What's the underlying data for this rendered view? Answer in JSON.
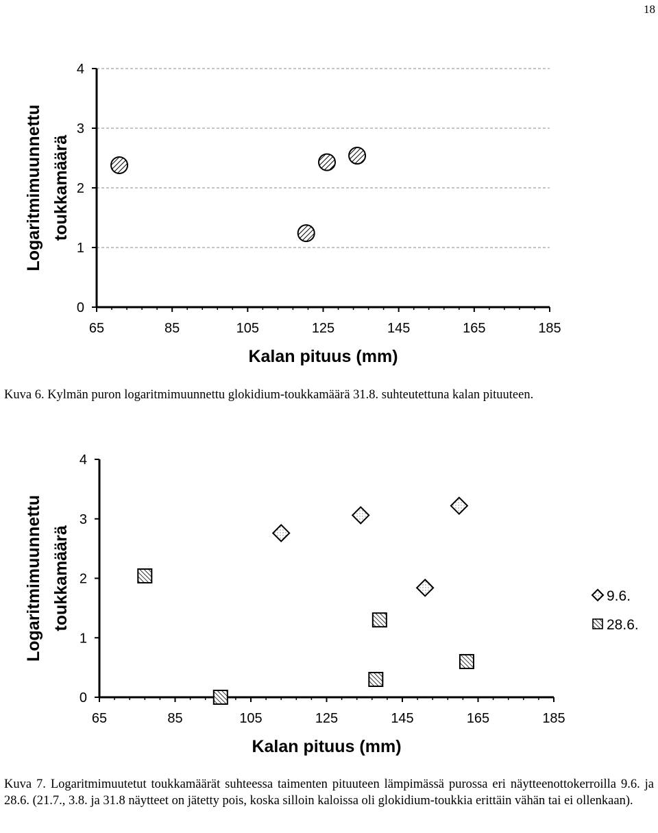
{
  "page": {
    "number": "18"
  },
  "figures": [
    {
      "caption": "Kuva 6. Kylmän puron logaritmimuunnettu glokidium-toukkamäärä 31.8. suhteutettuna kalan pituuteen."
    },
    {
      "caption": "Kuva 7. Logaritmimuutetut toukkamäärät suhteessa taimenten pituuteen lämpimässä purossa eri näytteenottokerroilla 9.6. ja 28.6. (21.7., 3.8. ja 31.8 näytteet on jätetty pois, koska silloin kaloissa oli glokidium-toukkia erittäin vähän tai ei ollenkaan)."
    }
  ],
  "chart_data": [
    {
      "type": "scatter",
      "title": "",
      "xlabel": "Kalan pituus (mm)",
      "ylabel": "Logaritmimuunnettu toukkamäärä",
      "ylabel_lines": [
        "Logaritmimuunnettu",
        "toukkamäärä"
      ],
      "xlim": [
        65,
        185
      ],
      "ylim": [
        0,
        4
      ],
      "x_ticks": [
        65,
        85,
        105,
        125,
        145,
        165,
        185
      ],
      "y_ticks": [
        0,
        1,
        2,
        3,
        4
      ],
      "grid": "horizontal-dashed",
      "legend": "none",
      "series": [
        {
          "marker": "circle-hatched",
          "points": [
            {
              "x": 71,
              "y": 2.38
            },
            {
              "x": 120.5,
              "y": 1.24
            },
            {
              "x": 126,
              "y": 2.43
            },
            {
              "x": 134,
              "y": 2.54
            }
          ]
        }
      ]
    },
    {
      "type": "scatter",
      "title": "",
      "xlabel": "Kalan pituus (mm)",
      "ylabel": "Logaritmimuunnettu toukkamäärä",
      "ylabel_lines": [
        "Logaritmimuunnettu",
        "toukkamäärä"
      ],
      "xlim": [
        65,
        185
      ],
      "ylim": [
        0,
        4
      ],
      "x_ticks": [
        65,
        85,
        105,
        125,
        145,
        165,
        185
      ],
      "y_ticks": [
        0,
        1,
        2,
        3,
        4
      ],
      "grid": "none",
      "legend": "right",
      "series": [
        {
          "name": "9.6.",
          "marker": "diamond-dotted",
          "points": [
            {
              "x": 113,
              "y": 2.76
            },
            {
              "x": 134,
              "y": 3.06
            },
            {
              "x": 151,
              "y": 1.84
            },
            {
              "x": 160,
              "y": 3.22
            }
          ]
        },
        {
          "name": "28.6.",
          "marker": "square-hatched",
          "points": [
            {
              "x": 77,
              "y": 2.04
            },
            {
              "x": 97,
              "y": 0
            },
            {
              "x": 138,
              "y": 0.3
            },
            {
              "x": 139,
              "y": 1.3
            },
            {
              "x": 162,
              "y": 0.6
            }
          ]
        }
      ]
    }
  ]
}
